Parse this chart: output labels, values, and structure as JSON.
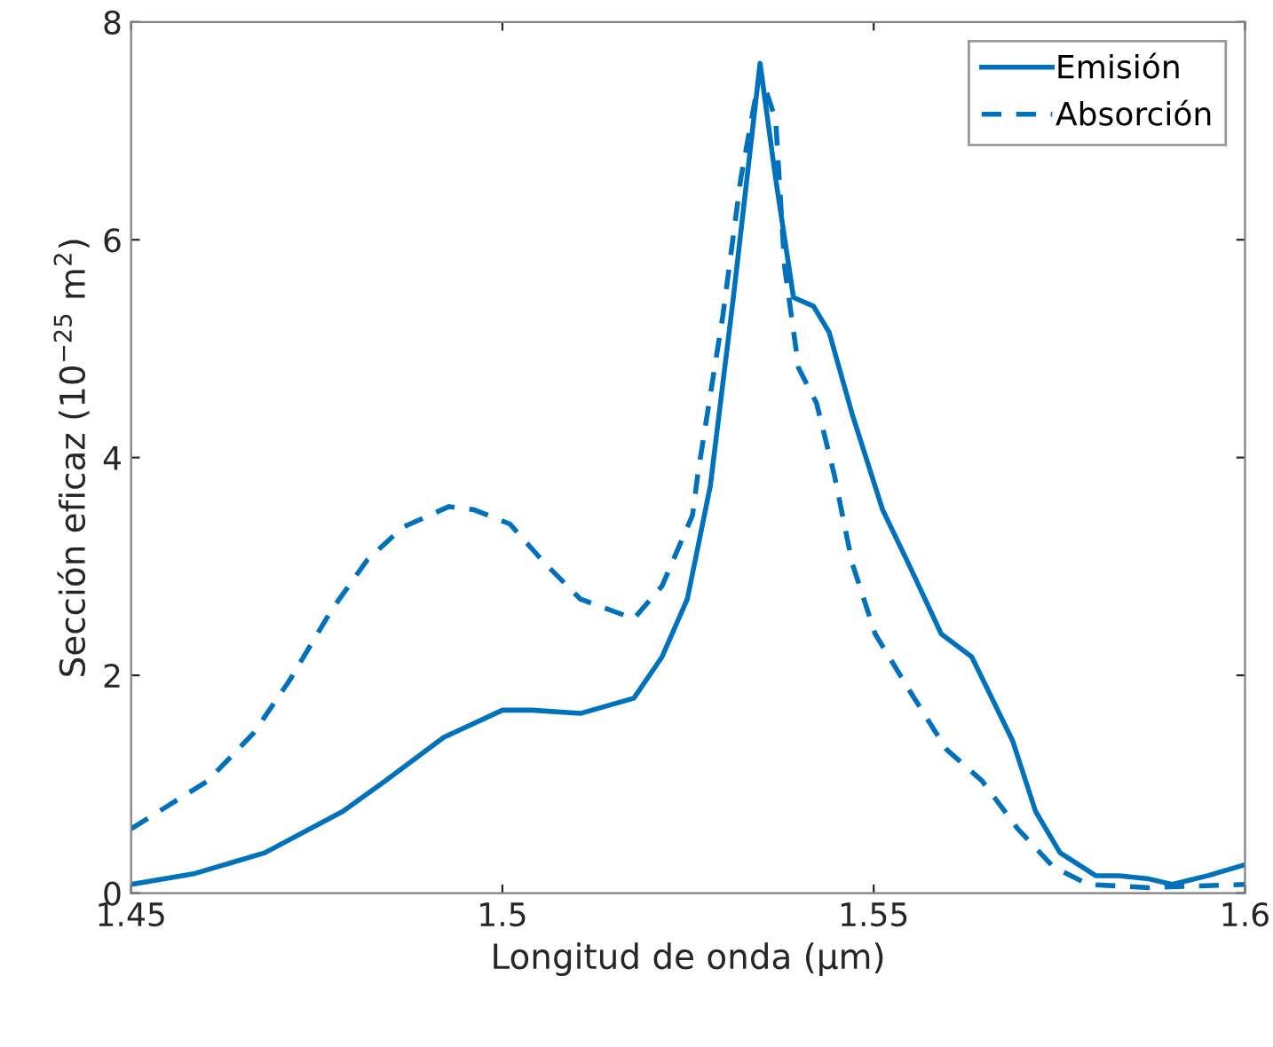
{
  "chart_data": {
    "type": "line",
    "xlabel": "Longitud de onda (μm)",
    "ylabel": "Sección eficaz (10$^{−25}$ m$^{2}$)",
    "xlim": [
      1.45,
      1.6
    ],
    "ylim": [
      0,
      8
    ],
    "xticks": [
      1.45,
      1.5,
      1.55,
      1.6
    ],
    "yticks": [
      0,
      2,
      4,
      6,
      8
    ],
    "grid": false,
    "legend": "top right",
    "series": [
      {
        "name": "Emisión",
        "color": "#0072bd",
        "line_style": "solid",
        "x": [
          1.45,
          1.4586,
          1.468,
          1.4785,
          1.4842,
          1.4921,
          1.5,
          1.504,
          1.5105,
          1.5177,
          1.5215,
          1.5249,
          1.528,
          1.5311,
          1.5347,
          1.5368,
          1.5392,
          1.5419,
          1.544,
          1.5471,
          1.5512,
          1.555,
          1.5591,
          1.5632,
          1.5687,
          1.5718,
          1.5751,
          1.5799,
          1.583,
          1.5871,
          1.5902,
          1.595,
          1.6
        ],
        "values": [
          0.08,
          0.18,
          0.37,
          0.75,
          1.03,
          1.43,
          1.68,
          1.68,
          1.65,
          1.79,
          2.17,
          2.7,
          3.74,
          5.47,
          7.62,
          6.56,
          5.47,
          5.39,
          5.15,
          4.4,
          3.52,
          2.98,
          2.38,
          2.17,
          1.4,
          0.75,
          0.37,
          0.16,
          0.16,
          0.13,
          0.08,
          0.16,
          0.26
        ]
      },
      {
        "name": "Absorción",
        "color": "#0072bd",
        "line_style": "dashed",
        "x": [
          1.45,
          1.4603,
          1.4665,
          1.4713,
          1.477,
          1.4818,
          1.4866,
          1.4928,
          1.4962,
          1.501,
          1.5057,
          1.5105,
          1.5177,
          1.5215,
          1.5256,
          1.5263,
          1.5297,
          1.5321,
          1.5347,
          1.5368,
          1.538,
          1.5399,
          1.5423,
          1.5447,
          1.5471,
          1.5502,
          1.555,
          1.5598,
          1.5646,
          1.5694,
          1.5742,
          1.5789,
          1.5871,
          1.6
        ],
        "values": [
          0.59,
          1.03,
          1.47,
          1.95,
          2.6,
          3.06,
          3.36,
          3.55,
          3.52,
          3.39,
          3.03,
          2.7,
          2.52,
          2.82,
          3.47,
          3.84,
          5.31,
          6.56,
          7.54,
          7.1,
          5.75,
          4.82,
          4.5,
          3.84,
          3.03,
          2.38,
          1.84,
          1.32,
          1.03,
          0.59,
          0.24,
          0.08,
          0.05,
          0.08
        ]
      }
    ]
  }
}
